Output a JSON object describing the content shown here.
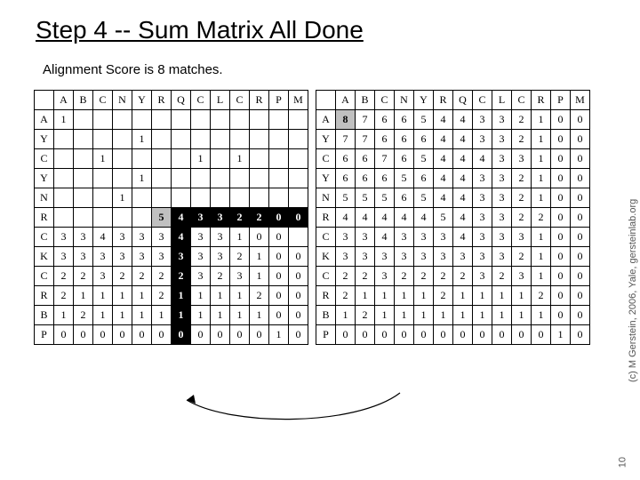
{
  "title": "Step 4 -- Sum Matrix All Done",
  "subtitle": "Alignment Score is 8 matches.",
  "sidetext": "(c) M Gerstein, 2006, Yale, gersteinlab.org",
  "pagenum": "10",
  "colHeaders": [
    "A",
    "B",
    "C",
    "N",
    "Y",
    "R",
    "Q",
    "C",
    "L",
    "C",
    "R",
    "P",
    "M"
  ],
  "rowHeaders": [
    "A",
    "Y",
    "C",
    "Y",
    "N",
    "R",
    "C",
    "K",
    "C",
    "R",
    "B",
    "P"
  ],
  "left": {
    "cells": [
      [
        "1",
        "",
        "",
        "",
        "",
        "",
        "",
        "",
        "",
        "",
        "",
        "",
        ""
      ],
      [
        "",
        "",
        "",
        "",
        "1",
        "",
        "",
        "",
        "",
        "",
        "",
        "",
        ""
      ],
      [
        "",
        "",
        "1",
        "",
        "",
        "",
        "",
        "1",
        "",
        "1",
        "",
        "",
        ""
      ],
      [
        "",
        "",
        "",
        "",
        "1",
        "",
        "",
        "",
        "",
        "",
        "",
        "",
        ""
      ],
      [
        "",
        "",
        "",
        "1",
        "",
        "",
        "",
        "",
        "",
        "",
        "",
        "",
        ""
      ],
      [
        "",
        "",
        "",
        "",
        "",
        "5",
        "4",
        "3",
        "3",
        "2",
        "2",
        "0",
        "0"
      ],
      [
        "3",
        "3",
        "4",
        "3",
        "3",
        "3",
        "4",
        "3",
        "3",
        "1",
        "0",
        "0",
        ""
      ],
      [
        "3",
        "3",
        "3",
        "3",
        "3",
        "3",
        "3",
        "3",
        "3",
        "2",
        "1",
        "0",
        "0"
      ],
      [
        "2",
        "2",
        "3",
        "2",
        "2",
        "2",
        "2",
        "3",
        "2",
        "3",
        "1",
        "0",
        "0"
      ],
      [
        "2",
        "1",
        "1",
        "1",
        "1",
        "2",
        "1",
        "1",
        "1",
        "1",
        "2",
        "0",
        "0"
      ],
      [
        "1",
        "2",
        "1",
        "1",
        "1",
        "1",
        "1",
        "1",
        "1",
        "1",
        "1",
        "0",
        "0"
      ],
      [
        "0",
        "0",
        "0",
        "0",
        "0",
        "0",
        "0",
        "0",
        "0",
        "0",
        "0",
        "1",
        "0"
      ]
    ],
    "highlight": {
      "r": 5,
      "c": 5
    },
    "pathRows": [
      5,
      6,
      7,
      8,
      9,
      10,
      11
    ],
    "pathCols": {
      "5": [
        6,
        7,
        8,
        9,
        10,
        11,
        12
      ],
      "6": [
        6
      ],
      "7": [
        6
      ],
      "8": [
        6
      ],
      "9": [
        6
      ],
      "10": [
        6
      ],
      "11": [
        6
      ]
    }
  },
  "right": {
    "cells": [
      [
        "8",
        "7",
        "6",
        "6",
        "5",
        "4",
        "4",
        "3",
        "3",
        "2",
        "1",
        "0",
        "0"
      ],
      [
        "7",
        "7",
        "6",
        "6",
        "6",
        "4",
        "4",
        "3",
        "3",
        "2",
        "1",
        "0",
        "0"
      ],
      [
        "6",
        "6",
        "7",
        "6",
        "5",
        "4",
        "4",
        "4",
        "3",
        "3",
        "1",
        "0",
        "0"
      ],
      [
        "6",
        "6",
        "6",
        "5",
        "6",
        "4",
        "4",
        "3",
        "3",
        "2",
        "1",
        "0",
        "0"
      ],
      [
        "5",
        "5",
        "5",
        "6",
        "5",
        "4",
        "4",
        "3",
        "3",
        "2",
        "1",
        "0",
        "0"
      ],
      [
        "4",
        "4",
        "4",
        "4",
        "4",
        "5",
        "4",
        "3",
        "3",
        "2",
        "2",
        "0",
        "0"
      ],
      [
        "3",
        "3",
        "4",
        "3",
        "3",
        "3",
        "4",
        "3",
        "3",
        "3",
        "1",
        "0",
        "0"
      ],
      [
        "3",
        "3",
        "3",
        "3",
        "3",
        "3",
        "3",
        "3",
        "3",
        "2",
        "1",
        "0",
        "0"
      ],
      [
        "2",
        "2",
        "3",
        "2",
        "2",
        "2",
        "2",
        "3",
        "2",
        "3",
        "1",
        "0",
        "0"
      ],
      [
        "2",
        "1",
        "1",
        "1",
        "1",
        "2",
        "1",
        "1",
        "1",
        "1",
        "2",
        "0",
        "0"
      ],
      [
        "1",
        "2",
        "1",
        "1",
        "1",
        "1",
        "1",
        "1",
        "1",
        "1",
        "1",
        "0",
        "0"
      ],
      [
        "0",
        "0",
        "0",
        "0",
        "0",
        "0",
        "0",
        "0",
        "0",
        "0",
        "0",
        "1",
        "0"
      ]
    ],
    "highlight": {
      "r": 0,
      "c": 0
    }
  },
  "arrowColor": "#000000"
}
